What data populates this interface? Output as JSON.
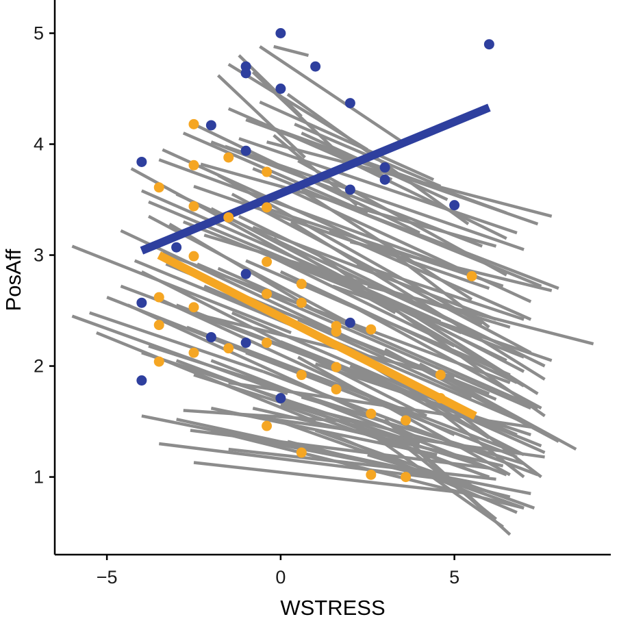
{
  "chart_data": {
    "type": "scatter",
    "title": "",
    "xlabel": "WSTRESS",
    "ylabel": "PosAff",
    "xlim": [
      -6.5,
      9.5
    ],
    "ylim": [
      0.3,
      5.25
    ],
    "x_ticks": [
      -5,
      0,
      5
    ],
    "x_tick_labels": [
      "−5",
      "0",
      "5"
    ],
    "y_ticks": [
      1,
      2,
      3,
      4,
      5
    ],
    "y_tick_labels": [
      "1",
      "2",
      "3",
      "4",
      "5"
    ],
    "grid": false,
    "legend": "none",
    "colors": {
      "group_a": "#2e3f9e",
      "group_b": "#f5a623",
      "individual_lines": "#8c8c8c"
    },
    "individual_lines": [
      [
        -6.0,
        3.08,
        0.3,
        2.3
      ],
      [
        -6.0,
        2.45,
        0.2,
        1.75
      ],
      [
        -5.3,
        2.3,
        1.0,
        1.5
      ],
      [
        -5.0,
        2.62,
        2.5,
        1.7
      ],
      [
        -4.6,
        2.72,
        2.8,
        1.85
      ],
      [
        -4.6,
        3.22,
        3.0,
        2.1
      ],
      [
        -4.4,
        2.55,
        4.0,
        1.35
      ],
      [
        -4.3,
        3.78,
        3.3,
        2.48
      ],
      [
        -4.0,
        3.58,
        4.6,
        2.4
      ],
      [
        -4.0,
        2.85,
        4.2,
        1.55
      ],
      [
        -4.0,
        2.12,
        4.0,
        1.3
      ],
      [
        -3.8,
        3.48,
        5.2,
        2.3
      ],
      [
        -3.8,
        3.35,
        2.5,
        2.3
      ],
      [
        -3.6,
        2.62,
        5.0,
        1.38
      ],
      [
        -3.5,
        3.86,
        5.3,
        2.85
      ],
      [
        -3.4,
        3.95,
        4.0,
        2.9
      ],
      [
        -3.4,
        3.02,
        6.6,
        1.85
      ],
      [
        -3.3,
        2.92,
        6.2,
        1.7
      ],
      [
        -3.0,
        3.55,
        6.3,
        2.2
      ],
      [
        -3.0,
        2.55,
        6.4,
        1.42
      ],
      [
        -2.8,
        4.1,
        2.5,
        3.38
      ],
      [
        -2.8,
        3.3,
        7.0,
        2.08
      ],
      [
        -2.7,
        2.35,
        6.8,
        1.22
      ],
      [
        -2.5,
        4.18,
        4.0,
        3.2
      ],
      [
        -2.5,
        3.62,
        6.0,
        2.7
      ],
      [
        -2.4,
        2.92,
        7.2,
        1.62
      ],
      [
        -2.3,
        3.82,
        6.2,
        3.08
      ],
      [
        -2.2,
        3.18,
        6.6,
        2.35
      ],
      [
        -2.2,
        2.72,
        6.8,
        1.52
      ],
      [
        -2.0,
        4.02,
        5.8,
        3.08
      ],
      [
        -2.0,
        3.42,
        7.0,
        1.95
      ],
      [
        -1.8,
        3.72,
        5.8,
        2.38
      ],
      [
        -1.8,
        2.88,
        7.4,
        1.62
      ],
      [
        -1.6,
        3.98,
        7.0,
        3.05
      ],
      [
        -1.5,
        4.32,
        3.2,
        3.68
      ],
      [
        -1.4,
        3.55,
        7.2,
        2.12
      ],
      [
        -1.4,
        2.48,
        6.8,
        1.38
      ],
      [
        -1.2,
        4.05,
        6.8,
        3.2
      ],
      [
        -1.2,
        3.35,
        7.6,
        2.0
      ],
      [
        -1.0,
        2.95,
        6.6,
        1.92
      ],
      [
        -1.0,
        4.22,
        5.2,
        3.52
      ],
      [
        -0.8,
        3.78,
        7.5,
        2.72
      ],
      [
        -0.8,
        3.25,
        6.2,
        2.42
      ],
      [
        -0.6,
        4.38,
        4.4,
        3.68
      ],
      [
        -0.4,
        4.02,
        7.8,
        3.35
      ],
      [
        -0.4,
        3.42,
        6.4,
        2.72
      ],
      [
        -0.2,
        3.15,
        7.0,
        1.82
      ],
      [
        0.0,
        4.12,
        6.5,
        3.38
      ],
      [
        0.0,
        3.62,
        7.2,
        2.58
      ],
      [
        0.2,
        4.45,
        5.4,
        3.28
      ],
      [
        0.3,
        3.3,
        7.6,
        1.88
      ],
      [
        0.4,
        4.18,
        4.6,
        3.62
      ],
      [
        0.5,
        3.85,
        6.5,
        2.82
      ],
      [
        0.6,
        3.58,
        5.5,
        2.6
      ],
      [
        1.0,
        3.98,
        7.4,
        3.28
      ],
      [
        1.2,
        3.52,
        8.0,
        2.7
      ],
      [
        1.4,
        3.22,
        7.2,
        2.42
      ],
      [
        1.6,
        3.9,
        6.5,
        3.15
      ],
      [
        2.0,
        3.12,
        7.8,
        2.68
      ],
      [
        2.5,
        2.72,
        9.0,
        2.2
      ],
      [
        -0.6,
        4.88,
        3.5,
        4.02
      ],
      [
        -1.2,
        4.8,
        0.6,
        4.25
      ],
      [
        -1.8,
        4.62,
        0.7,
        3.88
      ],
      [
        -1.5,
        4.72,
        2.5,
        3.95
      ],
      [
        -0.8,
        4.65,
        2.0,
        3.82
      ],
      [
        -0.2,
        4.08,
        2.2,
        3.45
      ],
      [
        -0.2,
        4.88,
        0.8,
        4.8
      ],
      [
        0.6,
        4.1,
        4.8,
        3.5
      ],
      [
        -4.0,
        1.55,
        4.0,
        1.05
      ],
      [
        -3.5,
        1.3,
        5.5,
        0.95
      ],
      [
        -3.0,
        1.52,
        5.0,
        0.98
      ],
      [
        -2.6,
        1.42,
        6.0,
        1.08
      ],
      [
        -2.5,
        1.13,
        5.5,
        0.85
      ],
      [
        -2.0,
        1.42,
        7.0,
        0.72
      ],
      [
        -1.6,
        1.58,
        7.6,
        1.18
      ],
      [
        -1.5,
        1.25,
        6.2,
        0.98
      ],
      [
        -1.0,
        1.35,
        7.2,
        0.85
      ],
      [
        -0.8,
        1.62,
        6.4,
        1.1
      ],
      [
        -0.2,
        1.52,
        7.0,
        0.72
      ],
      [
        0.2,
        1.32,
        6.6,
        0.82
      ],
      [
        0.6,
        1.72,
        7.0,
        1.12
      ],
      [
        1.0,
        1.42,
        7.3,
        0.72
      ],
      [
        1.5,
        1.38,
        6.8,
        0.68
      ],
      [
        2.0,
        1.52,
        6.4,
        0.55
      ],
      [
        2.5,
        1.2,
        6.5,
        0.82
      ],
      [
        3.0,
        1.52,
        5.8,
        0.72
      ],
      [
        3.5,
        1.3,
        6.2,
        0.62
      ],
      [
        4.0,
        1.22,
        6.6,
        0.48
      ],
      [
        -2.8,
        1.6,
        2.0,
        1.5
      ],
      [
        -2.0,
        1.62,
        4.5,
        1.2
      ],
      [
        0.0,
        1.65,
        6.0,
        1.0
      ],
      [
        1.0,
        1.6,
        6.0,
        1.2
      ],
      [
        -3.0,
        2.05,
        5.8,
        1.02
      ],
      [
        -2.5,
        1.92,
        6.0,
        1.08
      ],
      [
        -2.0,
        2.05,
        6.5,
        1.02
      ],
      [
        -1.5,
        1.85,
        7.2,
        1.45
      ],
      [
        -1.0,
        2.12,
        6.8,
        1.18
      ],
      [
        -0.5,
        1.95,
        7.4,
        1.02
      ],
      [
        0.0,
        2.22,
        7.5,
        1.28
      ],
      [
        0.5,
        2.08,
        6.6,
        1.02
      ],
      [
        1.0,
        2.02,
        7.2,
        1.38
      ],
      [
        1.5,
        2.22,
        6.0,
        1.35
      ],
      [
        2.0,
        2.0,
        7.6,
        1.22
      ],
      [
        2.5,
        1.92,
        7.0,
        1.2
      ],
      [
        3.0,
        2.15,
        8.0,
        1.32
      ],
      [
        3.5,
        1.85,
        7.0,
        1.0
      ],
      [
        4.0,
        2.02,
        8.5,
        1.25
      ],
      [
        4.5,
        1.72,
        7.5,
        1.0
      ],
      [
        -2.2,
        2.45,
        5.0,
        1.9
      ],
      [
        -1.0,
        2.62,
        6.0,
        1.75
      ],
      [
        0.0,
        2.85,
        6.8,
        1.85
      ],
      [
        1.0,
        3.02,
        7.6,
        1.55
      ],
      [
        1.5,
        2.72,
        7.8,
        2.05
      ],
      [
        2.0,
        2.55,
        7.5,
        1.62
      ],
      [
        3.0,
        2.62,
        7.4,
        1.75
      ],
      [
        3.2,
        3.02,
        6.0,
        2.35
      ],
      [
        -0.5,
        3.02,
        5.0,
        2.18
      ],
      [
        0.5,
        2.42,
        5.5,
        1.72
      ],
      [
        1.2,
        2.85,
        6.5,
        2.05
      ],
      [
        2.2,
        2.92,
        7.0,
        2.42
      ],
      [
        -3.8,
        2.18,
        3.0,
        1.5
      ],
      [
        -4.2,
        2.95,
        2.0,
        2.15
      ],
      [
        -5.5,
        2.48,
        -0.5,
        1.95
      ],
      [
        -3.2,
        3.28,
        1.0,
        2.5
      ]
    ],
    "series": [
      {
        "color": "#2e3f9e",
        "points": [
          [
            0.0,
            5.0
          ],
          [
            6.0,
            4.9
          ],
          [
            -1.0,
            4.7
          ],
          [
            -1.0,
            4.64
          ],
          [
            1.0,
            4.7
          ],
          [
            0.0,
            4.5
          ],
          [
            2.0,
            4.37
          ],
          [
            -2.0,
            4.17
          ],
          [
            -1.0,
            3.94
          ],
          [
            -4.0,
            3.84
          ],
          [
            3.0,
            3.79
          ],
          [
            3.0,
            3.68
          ],
          [
            2.0,
            3.59
          ],
          [
            5.0,
            3.45
          ],
          [
            -3.0,
            3.07
          ],
          [
            -1.0,
            2.83
          ],
          [
            -4.0,
            2.57
          ],
          [
            2.0,
            2.39
          ],
          [
            -2.0,
            2.26
          ],
          [
            -1.0,
            2.21
          ],
          [
            -4.0,
            1.87
          ],
          [
            0.0,
            1.71
          ]
        ],
        "fit": [
          [
            -4.0,
            3.04
          ],
          [
            6.0,
            4.33
          ]
        ]
      },
      {
        "color": "#f5a623",
        "points": [
          [
            -2.5,
            4.18
          ],
          [
            -1.5,
            3.88
          ],
          [
            -2.5,
            3.81
          ],
          [
            -0.4,
            3.75
          ],
          [
            -3.5,
            3.61
          ],
          [
            -2.5,
            3.44
          ],
          [
            -0.4,
            3.43
          ],
          [
            -1.5,
            3.34
          ],
          [
            -2.5,
            2.99
          ],
          [
            -0.4,
            2.94
          ],
          [
            5.5,
            2.81
          ],
          [
            0.6,
            2.74
          ],
          [
            -0.4,
            2.65
          ],
          [
            -3.5,
            2.62
          ],
          [
            0.6,
            2.57
          ],
          [
            -2.5,
            2.53
          ],
          [
            -3.5,
            2.37
          ],
          [
            1.6,
            2.36
          ],
          [
            2.6,
            2.33
          ],
          [
            1.6,
            2.31
          ],
          [
            -0.4,
            2.21
          ],
          [
            -1.5,
            2.16
          ],
          [
            -2.5,
            2.12
          ],
          [
            -3.5,
            2.04
          ],
          [
            1.6,
            1.99
          ],
          [
            0.6,
            1.92
          ],
          [
            4.6,
            1.92
          ],
          [
            1.6,
            1.79
          ],
          [
            4.6,
            1.71
          ],
          [
            2.6,
            1.57
          ],
          [
            3.6,
            1.51
          ],
          [
            -0.4,
            1.46
          ],
          [
            0.6,
            1.22
          ],
          [
            2.6,
            1.02
          ],
          [
            3.6,
            1.0
          ]
        ],
        "fit": [
          [
            -3.5,
            3.0
          ],
          [
            5.6,
            1.55
          ]
        ]
      }
    ]
  }
}
